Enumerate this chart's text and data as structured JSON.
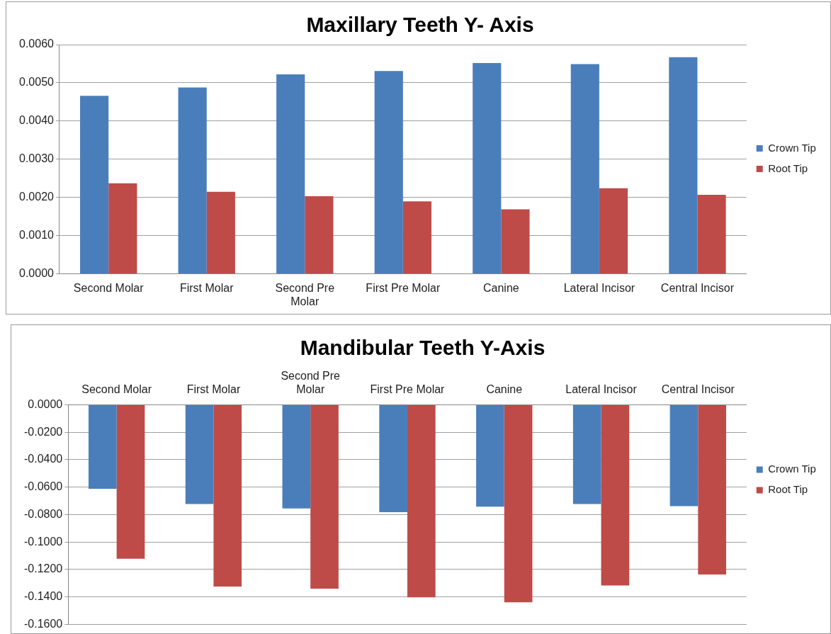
{
  "chart_data": [
    {
      "type": "bar",
      "title": "Maxillary Teeth Y- Axis",
      "categories": [
        "Second Molar",
        "First Molar",
        "Second Pre Molar",
        "First Pre Molar",
        "Canine",
        "Lateral Incisor",
        "Central Incisor"
      ],
      "series": [
        {
          "name": "Crown Tip",
          "color": "#4a7ebb",
          "values": [
            0.00466,
            0.00488,
            0.00522,
            0.00531,
            0.00552,
            0.00549,
            0.00567
          ]
        },
        {
          "name": "Root Tip",
          "color": "#be4b48",
          "values": [
            0.00237,
            0.00215,
            0.00203,
            0.0019,
            0.00169,
            0.00224,
            0.00207
          ]
        }
      ],
      "ylim": [
        0,
        0.006
      ],
      "yticks": [
        {
          "value": 0,
          "label": "0.0000"
        },
        {
          "value": 0.001,
          "label": "0.0010"
        },
        {
          "value": 0.002,
          "label": "0.0020"
        },
        {
          "value": 0.003,
          "label": "0.0030"
        },
        {
          "value": 0.004,
          "label": "0.0040"
        },
        {
          "value": 0.005,
          "label": "0.0050"
        },
        {
          "value": 0.006,
          "label": "0.0060"
        }
      ],
      "grid": "y",
      "legend": "right"
    },
    {
      "type": "bar",
      "title": "Mandibular Teeth Y-Axis",
      "categories": [
        "Second Molar",
        "First Molar",
        "Second Pre Molar",
        "First Pre Molar",
        "Canine",
        "Lateral Incisor",
        "Central Incisor"
      ],
      "series": [
        {
          "name": "Crown Tip",
          "color": "#4a7ebb",
          "values": [
            -0.0612,
            -0.0723,
            -0.0755,
            -0.0783,
            -0.0743,
            -0.0723,
            -0.0739
          ]
        },
        {
          "name": "Root Tip",
          "color": "#be4b48",
          "values": [
            -0.1122,
            -0.1324,
            -0.134,
            -0.1403,
            -0.1439,
            -0.1316,
            -0.1237
          ]
        }
      ],
      "ylim": [
        -0.16,
        0
      ],
      "yticks": [
        {
          "value": 0,
          "label": "0.0000"
        },
        {
          "value": -0.02,
          "label": "-0.0200"
        },
        {
          "value": -0.04,
          "label": "-0.0400"
        },
        {
          "value": -0.06,
          "label": "-0.0600"
        },
        {
          "value": -0.08,
          "label": "-0.0800"
        },
        {
          "value": -0.1,
          "label": "-0.1000"
        },
        {
          "value": -0.12,
          "label": "-0.1200"
        },
        {
          "value": -0.14,
          "label": "-0.1400"
        },
        {
          "value": -0.16,
          "label": "-0.1600"
        }
      ],
      "grid": "y",
      "legend": "right"
    }
  ]
}
